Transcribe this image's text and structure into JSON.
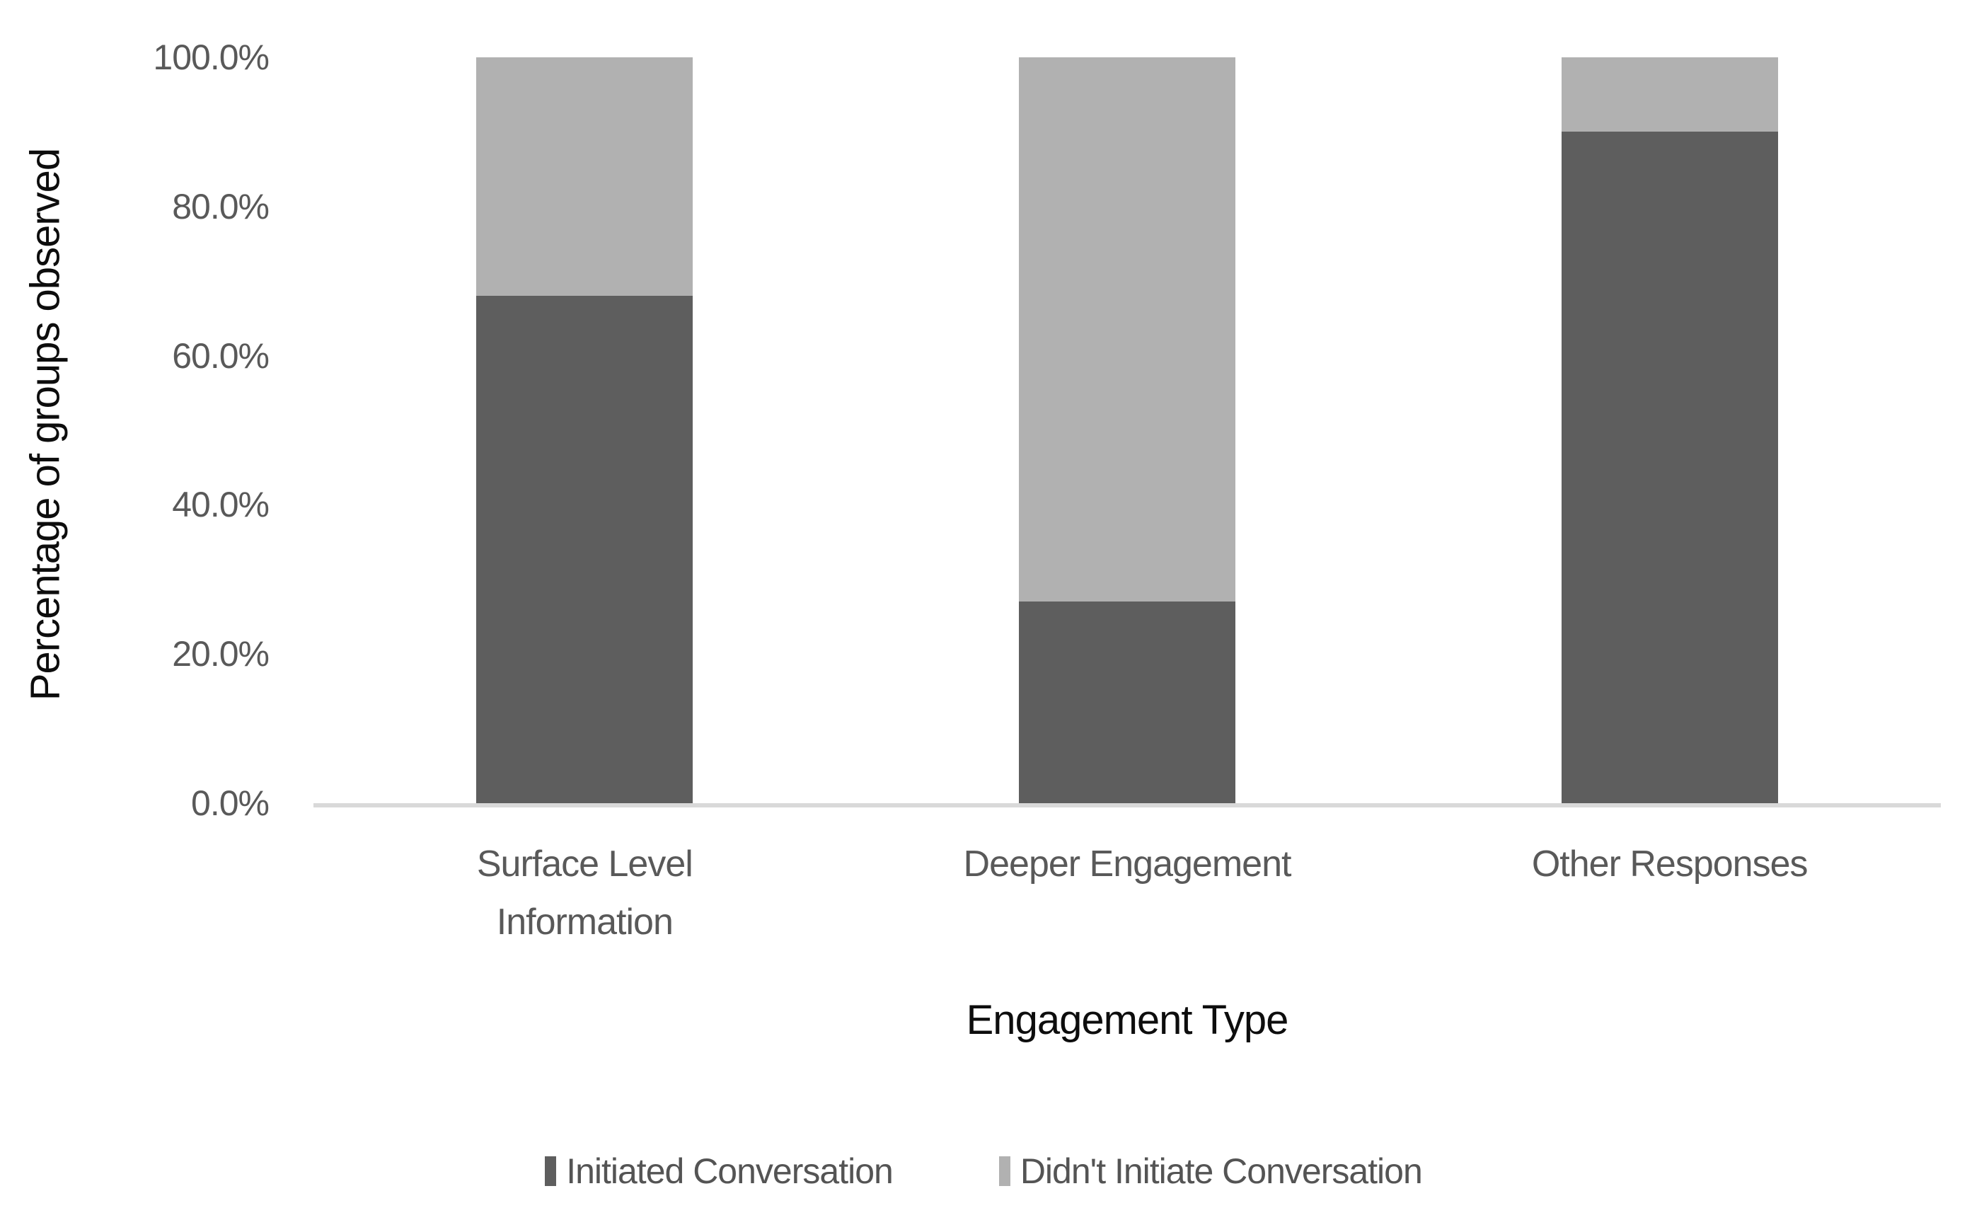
{
  "chart_data": {
    "type": "bar",
    "stacked": true,
    "percent_stacked": true,
    "title": "",
    "xlabel": "Engagement Type",
    "ylabel": "Percentage of groups observed",
    "categories": [
      "Surface Level Information",
      "Deeper Engagement",
      "Other Responses"
    ],
    "series": [
      {
        "name": "Initiated Conversation",
        "color": "#5e5e5e",
        "values": [
          68,
          27,
          90
        ]
      },
      {
        "name": "Didn't Initiate Conversation",
        "color": "#b1b1b1",
        "values": [
          32,
          73,
          10
        ]
      }
    ],
    "y_ticks": [
      "100.0%",
      "80.0%",
      "60.0%",
      "40.0%",
      "20.0%",
      "0.0%"
    ],
    "ylim": [
      0,
      100
    ],
    "grid": false,
    "legend_position": "bottom",
    "axis_line_color": "#d9d9d9",
    "tick_label_color": "#595959",
    "axis_title_color": "#0d0d0d"
  }
}
